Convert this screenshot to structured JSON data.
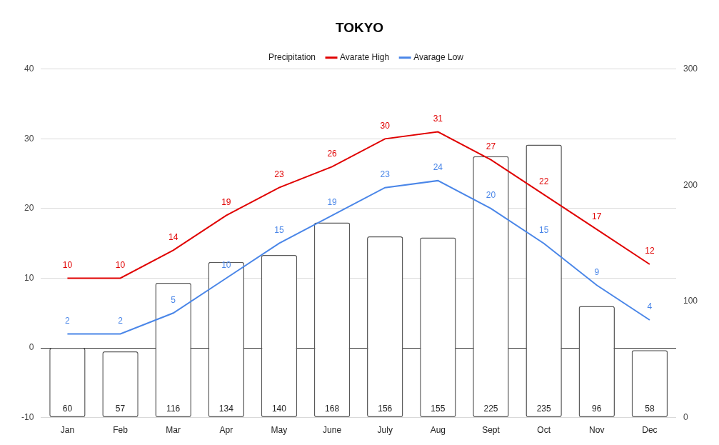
{
  "chart_data": {
    "type": "bar",
    "title": "TOKYO",
    "categories": [
      "Jan",
      "Feb",
      "Mar",
      "Apr",
      "May",
      "June",
      "July",
      "Aug",
      "Sept",
      "Oct",
      "Nov",
      "Dec"
    ],
    "series": [
      {
        "name": "Precipitation",
        "type": "bar",
        "color": "#595959",
        "axis": "y2",
        "values": [
          60,
          57,
          116,
          134,
          140,
          168,
          156,
          155,
          225,
          235,
          96,
          58
        ]
      },
      {
        "name": "Avarate High",
        "type": "line",
        "color": "#e00000",
        "values": [
          10,
          10,
          14,
          19,
          23,
          26,
          30,
          31,
          27,
          22,
          17,
          12
        ]
      },
      {
        "name": "Avarage Low",
        "type": "line",
        "color": "#4a86e8",
        "values": [
          2,
          2,
          5,
          10,
          15,
          19,
          23,
          24,
          20,
          15,
          9,
          4
        ]
      }
    ],
    "ylim": [
      -10,
      40
    ],
    "yticks": [
      -10,
      0,
      10,
      20,
      30,
      40
    ],
    "y2lim": [
      0,
      300
    ],
    "y2ticks": [
      0,
      100,
      200,
      300
    ],
    "grid": true,
    "legend": "top",
    "data_labels": true
  }
}
